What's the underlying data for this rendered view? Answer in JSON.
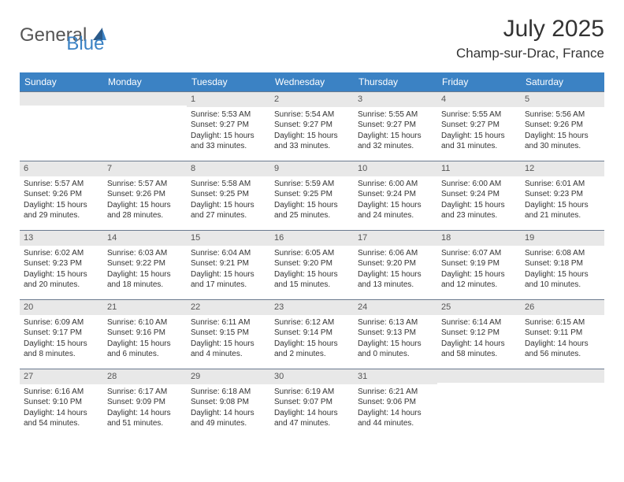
{
  "logo": {
    "general": "General",
    "blue": "Blue"
  },
  "title": "July 2025",
  "location": "Champ-sur-Drac, France",
  "colors": {
    "header_bg": "#3b82c4",
    "daynum_bg": "#e8e8e8",
    "day_border": "#6b7a8f",
    "text": "#333333",
    "logo_blue": "#3b82c4",
    "logo_gray": "#555555"
  },
  "weekdays": [
    "Sunday",
    "Monday",
    "Tuesday",
    "Wednesday",
    "Thursday",
    "Friday",
    "Saturday"
  ],
  "weeks": [
    [
      {
        "empty": true
      },
      {
        "empty": true
      },
      {
        "day": "1",
        "sunrise": "Sunrise: 5:53 AM",
        "sunset": "Sunset: 9:27 PM",
        "daylight1": "Daylight: 15 hours",
        "daylight2": "and 33 minutes."
      },
      {
        "day": "2",
        "sunrise": "Sunrise: 5:54 AM",
        "sunset": "Sunset: 9:27 PM",
        "daylight1": "Daylight: 15 hours",
        "daylight2": "and 33 minutes."
      },
      {
        "day": "3",
        "sunrise": "Sunrise: 5:55 AM",
        "sunset": "Sunset: 9:27 PM",
        "daylight1": "Daylight: 15 hours",
        "daylight2": "and 32 minutes."
      },
      {
        "day": "4",
        "sunrise": "Sunrise: 5:55 AM",
        "sunset": "Sunset: 9:27 PM",
        "daylight1": "Daylight: 15 hours",
        "daylight2": "and 31 minutes."
      },
      {
        "day": "5",
        "sunrise": "Sunrise: 5:56 AM",
        "sunset": "Sunset: 9:26 PM",
        "daylight1": "Daylight: 15 hours",
        "daylight2": "and 30 minutes."
      }
    ],
    [
      {
        "day": "6",
        "sunrise": "Sunrise: 5:57 AM",
        "sunset": "Sunset: 9:26 PM",
        "daylight1": "Daylight: 15 hours",
        "daylight2": "and 29 minutes."
      },
      {
        "day": "7",
        "sunrise": "Sunrise: 5:57 AM",
        "sunset": "Sunset: 9:26 PM",
        "daylight1": "Daylight: 15 hours",
        "daylight2": "and 28 minutes."
      },
      {
        "day": "8",
        "sunrise": "Sunrise: 5:58 AM",
        "sunset": "Sunset: 9:25 PM",
        "daylight1": "Daylight: 15 hours",
        "daylight2": "and 27 minutes."
      },
      {
        "day": "9",
        "sunrise": "Sunrise: 5:59 AM",
        "sunset": "Sunset: 9:25 PM",
        "daylight1": "Daylight: 15 hours",
        "daylight2": "and 25 minutes."
      },
      {
        "day": "10",
        "sunrise": "Sunrise: 6:00 AM",
        "sunset": "Sunset: 9:24 PM",
        "daylight1": "Daylight: 15 hours",
        "daylight2": "and 24 minutes."
      },
      {
        "day": "11",
        "sunrise": "Sunrise: 6:00 AM",
        "sunset": "Sunset: 9:24 PM",
        "daylight1": "Daylight: 15 hours",
        "daylight2": "and 23 minutes."
      },
      {
        "day": "12",
        "sunrise": "Sunrise: 6:01 AM",
        "sunset": "Sunset: 9:23 PM",
        "daylight1": "Daylight: 15 hours",
        "daylight2": "and 21 minutes."
      }
    ],
    [
      {
        "day": "13",
        "sunrise": "Sunrise: 6:02 AM",
        "sunset": "Sunset: 9:23 PM",
        "daylight1": "Daylight: 15 hours",
        "daylight2": "and 20 minutes."
      },
      {
        "day": "14",
        "sunrise": "Sunrise: 6:03 AM",
        "sunset": "Sunset: 9:22 PM",
        "daylight1": "Daylight: 15 hours",
        "daylight2": "and 18 minutes."
      },
      {
        "day": "15",
        "sunrise": "Sunrise: 6:04 AM",
        "sunset": "Sunset: 9:21 PM",
        "daylight1": "Daylight: 15 hours",
        "daylight2": "and 17 minutes."
      },
      {
        "day": "16",
        "sunrise": "Sunrise: 6:05 AM",
        "sunset": "Sunset: 9:20 PM",
        "daylight1": "Daylight: 15 hours",
        "daylight2": "and 15 minutes."
      },
      {
        "day": "17",
        "sunrise": "Sunrise: 6:06 AM",
        "sunset": "Sunset: 9:20 PM",
        "daylight1": "Daylight: 15 hours",
        "daylight2": "and 13 minutes."
      },
      {
        "day": "18",
        "sunrise": "Sunrise: 6:07 AM",
        "sunset": "Sunset: 9:19 PM",
        "daylight1": "Daylight: 15 hours",
        "daylight2": "and 12 minutes."
      },
      {
        "day": "19",
        "sunrise": "Sunrise: 6:08 AM",
        "sunset": "Sunset: 9:18 PM",
        "daylight1": "Daylight: 15 hours",
        "daylight2": "and 10 minutes."
      }
    ],
    [
      {
        "day": "20",
        "sunrise": "Sunrise: 6:09 AM",
        "sunset": "Sunset: 9:17 PM",
        "daylight1": "Daylight: 15 hours",
        "daylight2": "and 8 minutes."
      },
      {
        "day": "21",
        "sunrise": "Sunrise: 6:10 AM",
        "sunset": "Sunset: 9:16 PM",
        "daylight1": "Daylight: 15 hours",
        "daylight2": "and 6 minutes."
      },
      {
        "day": "22",
        "sunrise": "Sunrise: 6:11 AM",
        "sunset": "Sunset: 9:15 PM",
        "daylight1": "Daylight: 15 hours",
        "daylight2": "and 4 minutes."
      },
      {
        "day": "23",
        "sunrise": "Sunrise: 6:12 AM",
        "sunset": "Sunset: 9:14 PM",
        "daylight1": "Daylight: 15 hours",
        "daylight2": "and 2 minutes."
      },
      {
        "day": "24",
        "sunrise": "Sunrise: 6:13 AM",
        "sunset": "Sunset: 9:13 PM",
        "daylight1": "Daylight: 15 hours",
        "daylight2": "and 0 minutes."
      },
      {
        "day": "25",
        "sunrise": "Sunrise: 6:14 AM",
        "sunset": "Sunset: 9:12 PM",
        "daylight1": "Daylight: 14 hours",
        "daylight2": "and 58 minutes."
      },
      {
        "day": "26",
        "sunrise": "Sunrise: 6:15 AM",
        "sunset": "Sunset: 9:11 PM",
        "daylight1": "Daylight: 14 hours",
        "daylight2": "and 56 minutes."
      }
    ],
    [
      {
        "day": "27",
        "sunrise": "Sunrise: 6:16 AM",
        "sunset": "Sunset: 9:10 PM",
        "daylight1": "Daylight: 14 hours",
        "daylight2": "and 54 minutes."
      },
      {
        "day": "28",
        "sunrise": "Sunrise: 6:17 AM",
        "sunset": "Sunset: 9:09 PM",
        "daylight1": "Daylight: 14 hours",
        "daylight2": "and 51 minutes."
      },
      {
        "day": "29",
        "sunrise": "Sunrise: 6:18 AM",
        "sunset": "Sunset: 9:08 PM",
        "daylight1": "Daylight: 14 hours",
        "daylight2": "and 49 minutes."
      },
      {
        "day": "30",
        "sunrise": "Sunrise: 6:19 AM",
        "sunset": "Sunset: 9:07 PM",
        "daylight1": "Daylight: 14 hours",
        "daylight2": "and 47 minutes."
      },
      {
        "day": "31",
        "sunrise": "Sunrise: 6:21 AM",
        "sunset": "Sunset: 9:06 PM",
        "daylight1": "Daylight: 14 hours",
        "daylight2": "and 44 minutes."
      },
      {
        "empty": true
      },
      {
        "empty": true
      }
    ]
  ]
}
